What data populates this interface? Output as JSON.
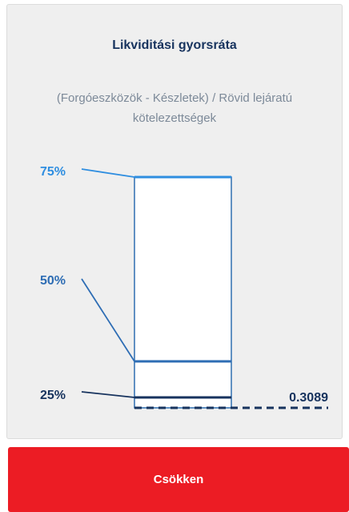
{
  "card": {
    "title": "Likviditási gyorsráta",
    "subtitle": "(Forgóeszközök - Készletek) / Rövid lejáratú kötelezettségek",
    "levels": [
      "75%",
      "50%",
      "25%"
    ],
    "value": "0.3089"
  },
  "button": {
    "label": "Csökken"
  }
}
